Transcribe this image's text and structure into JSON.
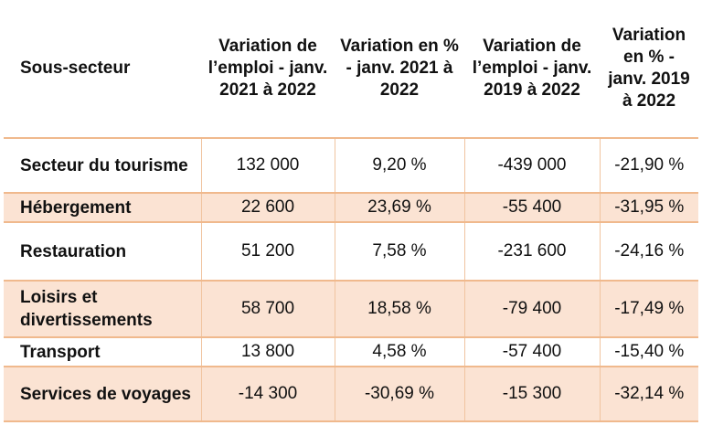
{
  "table": {
    "headers": [
      "Sous-secteur",
      "Variation de l’emploi - janv. 2021 à 2022",
      "Variation en % - janv. 2021 à 2022",
      "Variation de l’emploi - janv. 2019 à 2022",
      "Variation en % - janv. 2019 à 2022"
    ],
    "rows": [
      [
        "Secteur du tourisme",
        "132 000",
        "9,20 %",
        "-439 000",
        "-21,90 %"
      ],
      [
        "Hébergement",
        "22 600",
        "23,69 %",
        "-55 400",
        "-31,95 %"
      ],
      [
        "Restauration",
        "51 200",
        "7,58 %",
        "-231 600",
        "-24,16 %"
      ],
      [
        "Loisirs et divertissements",
        "58 700",
        "18,58 %",
        "-79 400",
        "-17,49 %"
      ],
      [
        "Transport",
        "13 800",
        "4,58 %",
        "-57 400",
        "-15,40 %"
      ],
      [
        "Services de voyages",
        "-14 300",
        "-30,69 %",
        "-15 300",
        "-32,14 %"
      ]
    ]
  },
  "colors": {
    "row_shade": "#fbe3d3",
    "rule": "#f0b98d"
  }
}
